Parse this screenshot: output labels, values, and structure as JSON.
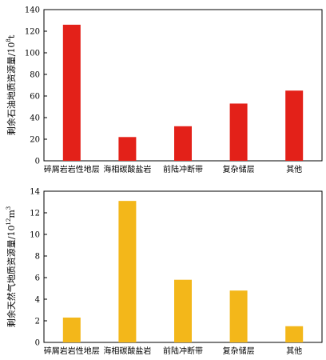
{
  "chart_data": [
    {
      "type": "bar",
      "categories": [
        "碎屑岩岩性地层",
        "海相碳酸盐岩",
        "前陆冲断带",
        "复杂储层",
        "其他"
      ],
      "values": [
        126,
        22,
        32,
        53,
        65
      ],
      "ylabel_main": "剩余石油地质资源量/10",
      "ylabel_sup": "8",
      "ylabel_unit": "t",
      "ylim": [
        0,
        140
      ],
      "yticks": [
        0,
        20,
        40,
        60,
        80,
        100,
        120,
        140
      ],
      "bar_color": "#e32119",
      "grid": false
    },
    {
      "type": "bar",
      "categories": [
        "碎屑岩岩性地层",
        "海相碳酸盐岩",
        "前陆冲断带",
        "复杂储层",
        "其他"
      ],
      "values": [
        2.3,
        13.1,
        5.8,
        4.8,
        1.5
      ],
      "ylabel_main": "剩余天然气地质资源量/10",
      "ylabel_sup": "12",
      "ylabel_unit": "m",
      "ylabel_sup2": "3",
      "ylim": [
        0,
        14
      ],
      "yticks": [
        0,
        2,
        4,
        6,
        8,
        10,
        12,
        14
      ],
      "bar_color": "#f3b71a",
      "grid": false
    }
  ]
}
